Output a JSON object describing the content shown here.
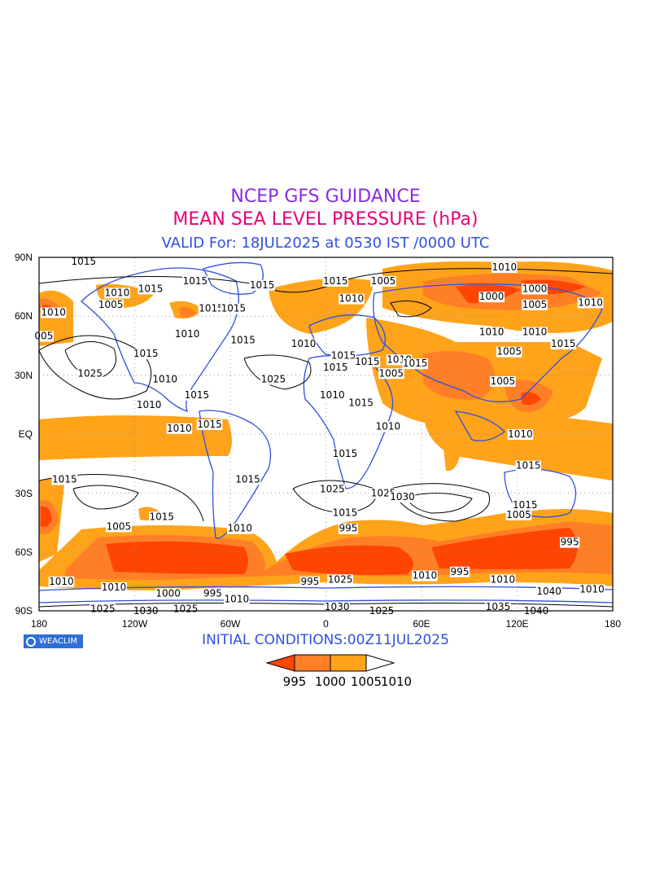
{
  "header": {
    "title": "NCEP GFS GUIDANCE",
    "subtitle": "MEAN SEA LEVEL PRESSURE (hPa)",
    "valid": "VALID For: 18JUL2025 at 0530 IST /0000 UTC"
  },
  "colors": {
    "title": "#8a2be2",
    "subtitle": "#e6007a",
    "valid": "#2f4fe0",
    "coast": "#2f4fe0",
    "level_995": "#ff4500",
    "level_1000": "#ff7f27",
    "level_1005": "#ffa31a",
    "level_1010": "#ffffff"
  },
  "map": {
    "lat_ticks": [
      "90N",
      "60N",
      "30N",
      "EQ",
      "30S",
      "60S",
      "90S"
    ],
    "lon_ticks": [
      "180",
      "120W",
      "60W",
      "0",
      "60E",
      "120E",
      "180"
    ],
    "contour_labels": [
      {
        "text": "1015",
        "lon": -152,
        "lat": 88
      },
      {
        "text": "1010",
        "lon": -171,
        "lat": 62
      },
      {
        "text": "005",
        "lon": -177,
        "lat": 50
      },
      {
        "text": "1005",
        "lon": -135,
        "lat": 66
      },
      {
        "text": "1010",
        "lon": -131,
        "lat": 72
      },
      {
        "text": "1015",
        "lon": -110,
        "lat": 74
      },
      {
        "text": "1015",
        "lon": -82,
        "lat": 78
      },
      {
        "text": "1015",
        "lon": -113,
        "lat": 41
      },
      {
        "text": "1025",
        "lon": -148,
        "lat": 31
      },
      {
        "text": "1010",
        "lon": -101,
        "lat": 28
      },
      {
        "text": "1015",
        "lon": -81,
        "lat": 20
      },
      {
        "text": "1010",
        "lon": -111,
        "lat": 15
      },
      {
        "text": "1010",
        "lon": -92,
        "lat": 3
      },
      {
        "text": "1015",
        "lon": -73,
        "lat": 5
      },
      {
        "text": "1010",
        "lon": -87,
        "lat": 51
      },
      {
        "text": "1015",
        "lon": -72,
        "lat": 64
      },
      {
        "text": "1015",
        "lon": -58,
        "lat": 64
      },
      {
        "text": "1015",
        "lon": -52,
        "lat": 48
      },
      {
        "text": "1025",
        "lon": -33,
        "lat": 28
      },
      {
        "text": "1015",
        "lon": -40,
        "lat": 76
      },
      {
        "text": "1010",
        "lon": -14,
        "lat": 46
      },
      {
        "text": "1015",
        "lon": 6,
        "lat": 34
      },
      {
        "text": "1010",
        "lon": 4,
        "lat": 20
      },
      {
        "text": "1015",
        "lon": 12,
        "lat": -10
      },
      {
        "text": "1015",
        "lon": -49,
        "lat": -23
      },
      {
        "text": "1025",
        "lon": 4,
        "lat": -28
      },
      {
        "text": "1015",
        "lon": -164,
        "lat": -23
      },
      {
        "text": "1005",
        "lon": -130,
        "lat": -47
      },
      {
        "text": "1015",
        "lon": -103,
        "lat": -42
      },
      {
        "text": "1010",
        "lon": -54,
        "lat": -48
      },
      {
        "text": "1015",
        "lon": 12,
        "lat": -40
      },
      {
        "text": "1025",
        "lon": 36,
        "lat": -30
      },
      {
        "text": "1030",
        "lon": 48,
        "lat": -32
      },
      {
        "text": "995",
        "lon": 14,
        "lat": -48
      },
      {
        "text": "1010",
        "lon": 39,
        "lat": 4
      },
      {
        "text": "1005",
        "lon": 41,
        "lat": 31
      },
      {
        "text": "1015",
        "lon": 22,
        "lat": 16
      },
      {
        "text": "1015",
        "lon": 11,
        "lat": 40
      },
      {
        "text": "1015",
        "lon": 26,
        "lat": 37
      },
      {
        "text": "1010",
        "lon": 46,
        "lat": 38
      },
      {
        "text": "1015",
        "lon": 56,
        "lat": 36
      },
      {
        "text": "1005",
        "lon": 36,
        "lat": 78
      },
      {
        "text": "1010",
        "lon": 16,
        "lat": 69
      },
      {
        "text": "1015",
        "lon": 6,
        "lat": 78
      },
      {
        "text": "1010",
        "lon": 112,
        "lat": 85
      },
      {
        "text": "1000",
        "lon": 104,
        "lat": 70
      },
      {
        "text": "1000",
        "lon": 131,
        "lat": 74
      },
      {
        "text": "1005",
        "lon": 131,
        "lat": 66
      },
      {
        "text": "1010",
        "lon": 166,
        "lat": 67
      },
      {
        "text": "1010",
        "lon": 104,
        "lat": 52
      },
      {
        "text": "1010",
        "lon": 131,
        "lat": 52
      },
      {
        "text": "1005",
        "lon": 115,
        "lat": 42
      },
      {
        "text": "1005",
        "lon": 111,
        "lat": 27
      },
      {
        "text": "1015",
        "lon": 149,
        "lat": 46
      },
      {
        "text": "1010",
        "lon": 122,
        "lat": 0
      },
      {
        "text": "1015",
        "lon": 127,
        "lat": -16
      },
      {
        "text": "1015",
        "lon": 125,
        "lat": -36
      },
      {
        "text": "1005",
        "lon": 121,
        "lat": -41
      },
      {
        "text": "995",
        "lon": 153,
        "lat": -55
      },
      {
        "text": "995",
        "lon": 84,
        "lat": -70
      },
      {
        "text": "1010",
        "lon": -166,
        "lat": -75
      },
      {
        "text": "1010",
        "lon": -133,
        "lat": -78
      },
      {
        "text": "1000",
        "lon": -99,
        "lat": -81
      },
      {
        "text": "995",
        "lon": -71,
        "lat": -81
      },
      {
        "text": "1010",
        "lon": -56,
        "lat": -84
      },
      {
        "text": "1025",
        "lon": -140,
        "lat": -89
      },
      {
        "text": "1025",
        "lon": -88,
        "lat": -89
      },
      {
        "text": "1030",
        "lon": -113,
        "lat": -90
      },
      {
        "text": "995",
        "lon": -10,
        "lat": -75
      },
      {
        "text": "1025",
        "lon": 9,
        "lat": -74
      },
      {
        "text": "1030",
        "lon": 7,
        "lat": -88
      },
      {
        "text": "1025",
        "lon": 35,
        "lat": -90
      },
      {
        "text": "1010",
        "lon": 62,
        "lat": -72
      },
      {
        "text": "1010",
        "lon": 111,
        "lat": -74
      },
      {
        "text": "1035",
        "lon": 108,
        "lat": -88
      },
      {
        "text": "1040",
        "lon": 140,
        "lat": -80
      },
      {
        "text": "1040",
        "lon": 132,
        "lat": -90
      },
      {
        "text": "1010",
        "lon": 167,
        "lat": -79
      }
    ]
  },
  "brand": "WEACLIM",
  "initial_conditions": "INITIAL CONDITIONS:00Z11JUL2025",
  "colorbar": {
    "levels": [
      "995",
      "1000",
      "1005",
      "1010"
    ]
  }
}
